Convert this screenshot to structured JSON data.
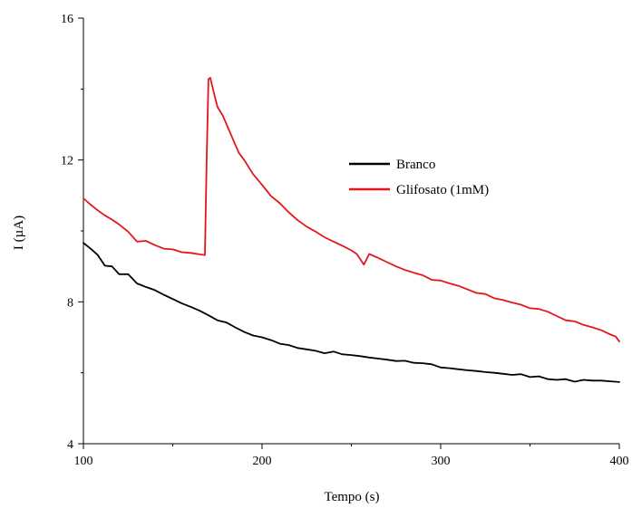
{
  "chart_data": {
    "type": "line",
    "xlabel": "Tempo (s)",
    "ylabel": "I (µA)",
    "xlim": [
      100,
      400
    ],
    "ylim": [
      4,
      16
    ],
    "x_ticks": [
      100,
      200,
      300,
      400
    ],
    "y_ticks": [
      4,
      8,
      12,
      16
    ],
    "grid": false,
    "legend_placement": "center-right",
    "series": [
      {
        "name": "Branco",
        "color": "#000000",
        "x": [
          100,
          104,
          108,
          112,
          116,
          120,
          125,
          130,
          135,
          140,
          145,
          150,
          155,
          160,
          165,
          170,
          175,
          180,
          185,
          190,
          195,
          200,
          205,
          210,
          215,
          220,
          225,
          230,
          235,
          240,
          245,
          250,
          255,
          260,
          265,
          270,
          275,
          280,
          285,
          290,
          295,
          300,
          305,
          310,
          315,
          320,
          325,
          330,
          335,
          340,
          345,
          350,
          355,
          360,
          365,
          370,
          375,
          380,
          385,
          390,
          395,
          400
        ],
        "y": [
          9.66,
          9.5,
          9.32,
          9.02,
          9.0,
          8.78,
          8.78,
          8.52,
          8.42,
          8.33,
          8.2,
          8.08,
          7.96,
          7.86,
          7.75,
          7.62,
          7.48,
          7.42,
          7.28,
          7.15,
          7.05,
          7.0,
          6.92,
          6.82,
          6.78,
          6.7,
          6.66,
          6.62,
          6.55,
          6.6,
          6.52,
          6.5,
          6.47,
          6.43,
          6.4,
          6.37,
          6.33,
          6.34,
          6.28,
          6.27,
          6.24,
          6.15,
          6.13,
          6.1,
          6.07,
          6.05,
          6.02,
          6.0,
          5.97,
          5.94,
          5.96,
          5.88,
          5.9,
          5.82,
          5.8,
          5.82,
          5.75,
          5.8,
          5.78,
          5.78,
          5.76,
          5.74
        ]
      },
      {
        "name": "Glifosato (1mM)",
        "color": "#e4161b",
        "x": [
          100,
          104,
          108,
          112,
          116,
          120,
          125,
          130,
          135,
          140,
          145,
          150,
          155,
          160,
          165,
          168,
          169,
          170,
          171,
          173,
          175,
          178,
          181,
          184,
          187,
          190,
          195,
          200,
          205,
          210,
          215,
          220,
          225,
          230,
          235,
          240,
          245,
          250,
          253,
          257,
          260,
          265,
          270,
          275,
          280,
          285,
          290,
          295,
          300,
          305,
          310,
          315,
          320,
          325,
          330,
          335,
          340,
          345,
          350,
          355,
          360,
          365,
          370,
          375,
          380,
          385,
          390,
          395,
          398,
          400
        ],
        "y": [
          10.92,
          10.74,
          10.58,
          10.44,
          10.32,
          10.18,
          9.98,
          9.7,
          9.72,
          9.6,
          9.5,
          9.48,
          9.4,
          9.38,
          9.34,
          9.32,
          12.0,
          14.28,
          14.32,
          13.9,
          13.5,
          13.25,
          12.9,
          12.55,
          12.2,
          12.0,
          11.6,
          11.3,
          10.98,
          10.78,
          10.52,
          10.3,
          10.12,
          9.98,
          9.82,
          9.7,
          9.58,
          9.45,
          9.35,
          9.05,
          9.35,
          9.24,
          9.12,
          9.0,
          8.9,
          8.82,
          8.75,
          8.62,
          8.6,
          8.52,
          8.45,
          8.35,
          8.25,
          8.22,
          8.1,
          8.05,
          7.98,
          7.92,
          7.82,
          7.8,
          7.72,
          7.6,
          7.48,
          7.45,
          7.35,
          7.28,
          7.2,
          7.08,
          7.02,
          6.88
        ]
      }
    ]
  }
}
